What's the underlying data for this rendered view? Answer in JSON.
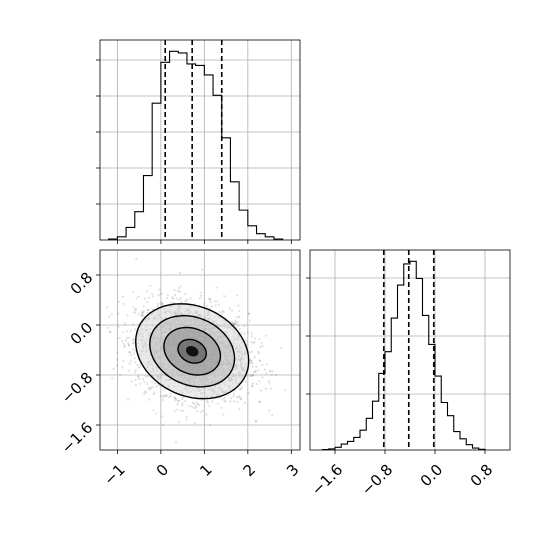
{
  "chart_data": [
    {
      "type": "histogram",
      "panel": "top-left",
      "xlim": [
        -1.4,
        3.2
      ],
      "bin_edges": [
        -1.2,
        -1.0,
        -0.8,
        -0.6,
        -0.4,
        -0.2,
        0.0,
        0.2,
        0.4,
        0.6,
        0.8,
        1.0,
        1.2,
        1.4,
        1.6,
        1.8,
        2.0,
        2.2,
        2.4,
        2.6,
        2.8
      ],
      "counts": [
        3,
        10,
        40,
        90,
        205,
        435,
        565,
        600,
        595,
        560,
        555,
        525,
        460,
        325,
        185,
        95,
        45,
        20,
        10,
        3
      ],
      "quantiles": [
        0.1,
        0.72,
        1.4
      ],
      "grid": true
    },
    {
      "type": "scatter-contour",
      "panel": "bottom-left",
      "xlim": [
        -1.4,
        3.2
      ],
      "ylim": [
        -2.0,
        1.2
      ],
      "xticks": [
        "−1",
        "0",
        "1",
        "2",
        "3"
      ],
      "yticks": [
        "0.8",
        "0.0",
        "−0.8",
        "−1.6"
      ],
      "center": [
        0.72,
        -0.42
      ],
      "sd": [
        0.65,
        0.38
      ],
      "correlation": -0.2,
      "contour_levels_sigma": [
        0.5,
        1.0,
        1.5,
        2.0
      ],
      "grid": true
    },
    {
      "type": "histogram",
      "panel": "bottom-right",
      "xlim": [
        -2.0,
        1.2
      ],
      "xticks": [
        "−1.6",
        "−0.8",
        "0.0",
        "0.8"
      ],
      "bin_edges": [
        -1.8,
        -1.7,
        -1.6,
        -1.5,
        -1.4,
        -1.3,
        -1.2,
        -1.1,
        -1.0,
        -0.9,
        -0.8,
        -0.7,
        -0.6,
        -0.5,
        -0.4,
        -0.3,
        -0.2,
        -0.1,
        0.0,
        0.1,
        0.2,
        0.3,
        0.4,
        0.5,
        0.6,
        0.7,
        0.8
      ],
      "counts": [
        3,
        8,
        20,
        45,
        65,
        95,
        150,
        240,
        370,
        580,
        745,
        1000,
        1250,
        1410,
        1430,
        1300,
        1020,
        800,
        560,
        360,
        260,
        140,
        85,
        40,
        15,
        5
      ],
      "quantiles": [
        -0.82,
        -0.42,
        -0.02
      ],
      "grid": true
    }
  ]
}
